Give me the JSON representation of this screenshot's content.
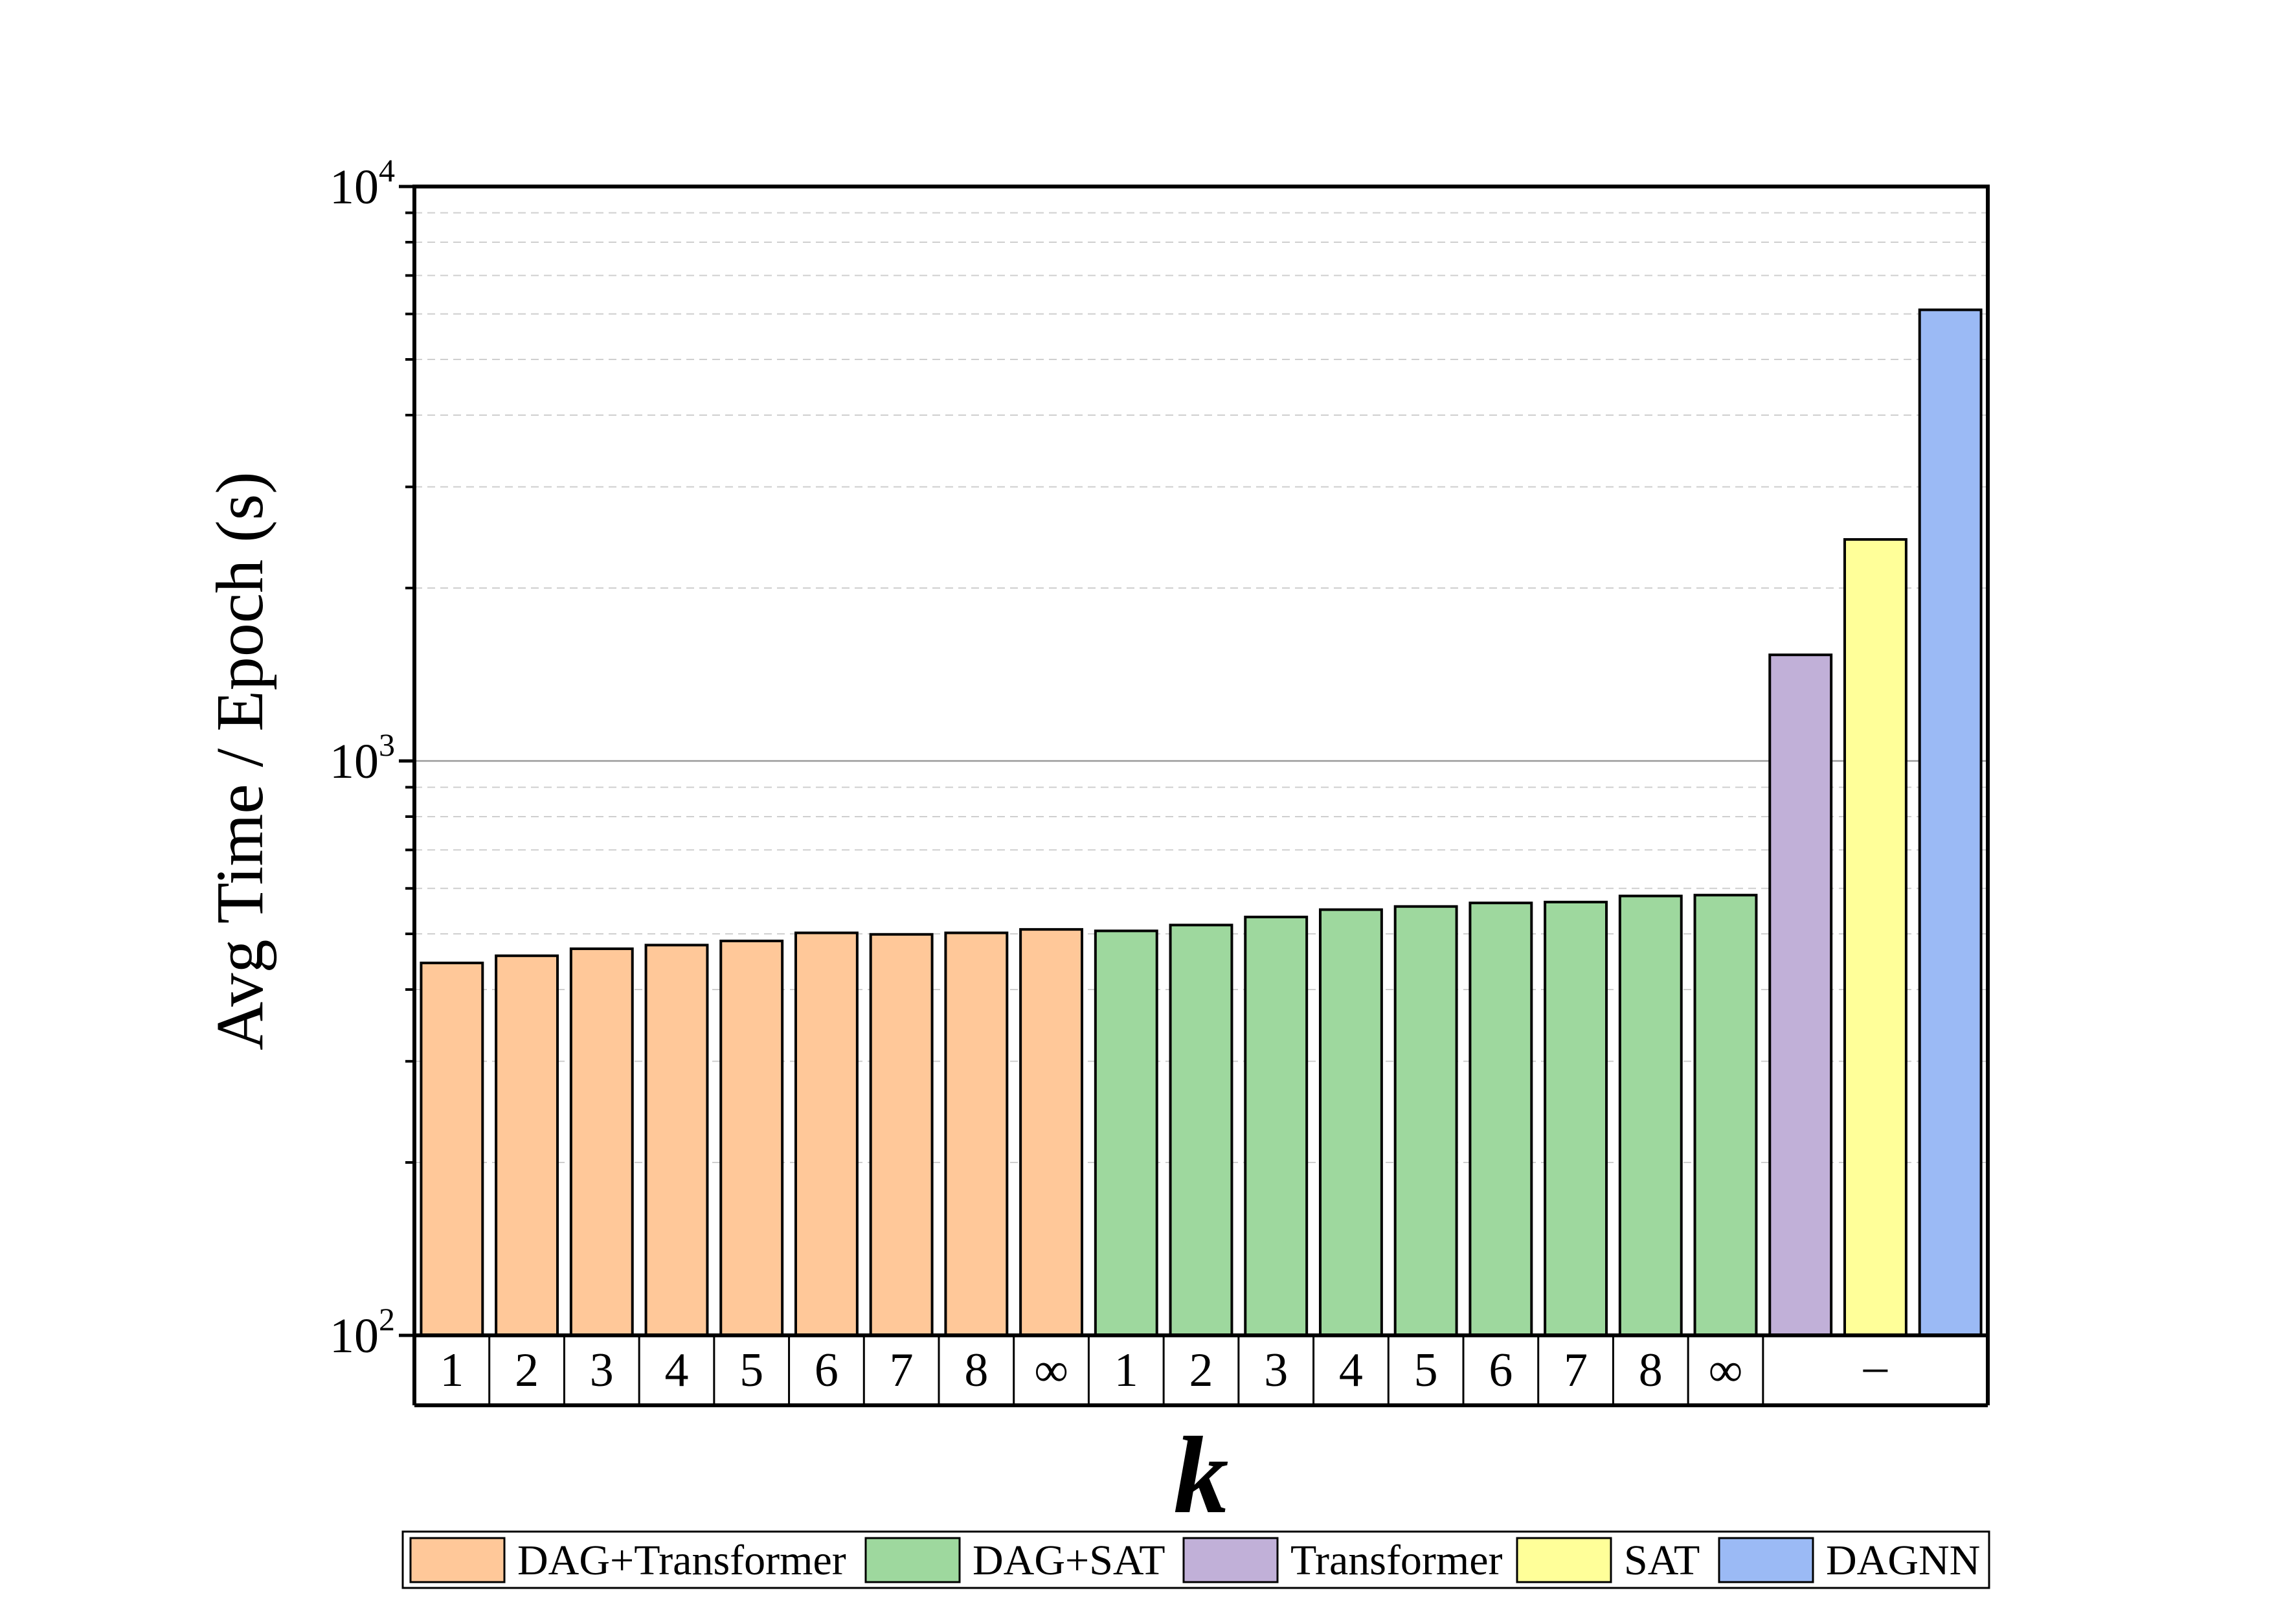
{
  "chart_data": {
    "type": "bar",
    "title": "",
    "xlabel": "k",
    "ylabel": "Avg Time / Epoch (s)",
    "y_scale": "log",
    "ylim": [
      100,
      10000
    ],
    "y_ticks": [
      {
        "value": 100,
        "base": "10",
        "exp": "2"
      },
      {
        "value": 1000,
        "base": "10",
        "exp": "3"
      },
      {
        "value": 10000,
        "base": "10",
        "exp": "4"
      }
    ],
    "grid": "horizontal dashed minor, solid major",
    "legend_position": "bottom",
    "groups": [
      {
        "name": "DAG+Transformer",
        "color": "#FFC899",
        "categories": [
          "1",
          "2",
          "3",
          "4",
          "5",
          "6",
          "7",
          "8",
          "∞"
        ],
        "values": [
          445,
          458,
          471,
          478,
          486,
          502,
          499,
          502,
          509
        ]
      },
      {
        "name": "DAG+SAT",
        "color": "#9ED89E",
        "categories": [
          "1",
          "2",
          "3",
          "4",
          "5",
          "6",
          "7",
          "8",
          "∞"
        ],
        "values": [
          506,
          518,
          535,
          551,
          558,
          566,
          568,
          582,
          584
        ]
      },
      {
        "name": "Transformer",
        "color": "#C1B0D8",
        "categories": [
          "–"
        ],
        "values": [
          1530
        ]
      },
      {
        "name": "SAT",
        "color": "#FFFF99",
        "categories": [
          "–"
        ],
        "values": [
          2430
        ]
      },
      {
        "name": "DAGNN",
        "color": "#9BBAF5",
        "categories": [
          "–"
        ],
        "values": [
          6100
        ]
      }
    ],
    "shared_label": "–"
  }
}
